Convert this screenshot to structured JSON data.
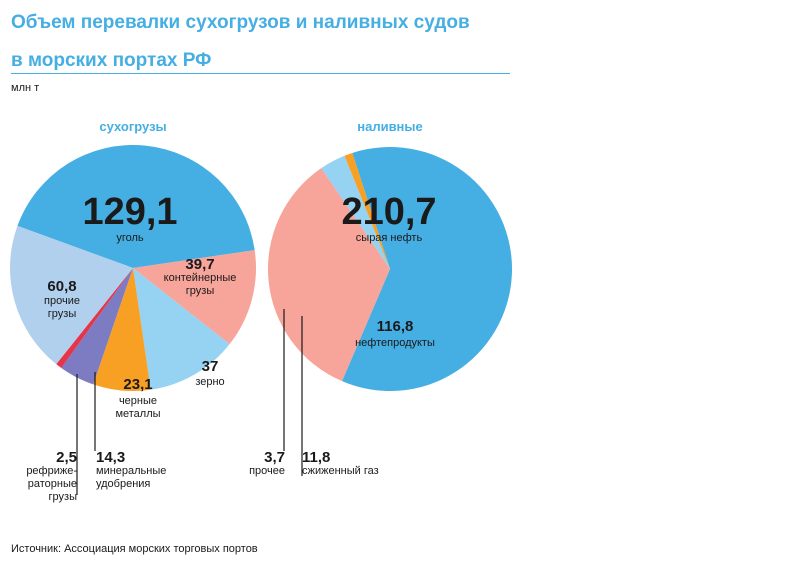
{
  "title_line1": "Объем перевалки сухогрузов и наливных судов",
  "title_line2": "в морских портах РФ",
  "unit": "млн т",
  "source": "Источник: Ассоциация морских торговых портов",
  "chart_data": [
    {
      "type": "pie",
      "title": "сухогрузы",
      "start_angle_deg": 200,
      "slices": [
        {
          "value": 129.1,
          "label": "129,1",
          "name": "уголь",
          "color": "#45aee3"
        },
        {
          "value": 39.7,
          "label": "39,7",
          "name": "контейнерные грузы",
          "color": "#f7a49b"
        },
        {
          "value": 37,
          "label": "37",
          "name": "зерно",
          "color": "#96d2f1"
        },
        {
          "value": 23.1,
          "label": "23,1",
          "name": "черные металлы",
          "color": "#f8a024"
        },
        {
          "value": 14.3,
          "label": "14,3",
          "name": "минеральные удобрения",
          "color": "#7d7bc2"
        },
        {
          "value": 2.5,
          "label": "2,5",
          "name": "рефриже-раторные грузы",
          "color": "#e63449"
        },
        {
          "value": 60.8,
          "label": "60,8",
          "name": "прочие грузы",
          "color": "#b0d0ee"
        }
      ]
    },
    {
      "type": "pie",
      "title": "наливные",
      "start_angle_deg": 252,
      "slices": [
        {
          "value": 210.7,
          "label": "210,7",
          "name": "сырая нефть",
          "color": "#45aee3"
        },
        {
          "value": 116.8,
          "label": "116,8",
          "name": "нефтепродукты",
          "color": "#f7a49b"
        },
        {
          "value": 11.8,
          "label": "11,8",
          "name": "сжиженный газ",
          "color": "#96d2f1"
        },
        {
          "value": 3.7,
          "label": "3,7",
          "name": "прочее",
          "color": "#f8a024"
        }
      ]
    }
  ]
}
